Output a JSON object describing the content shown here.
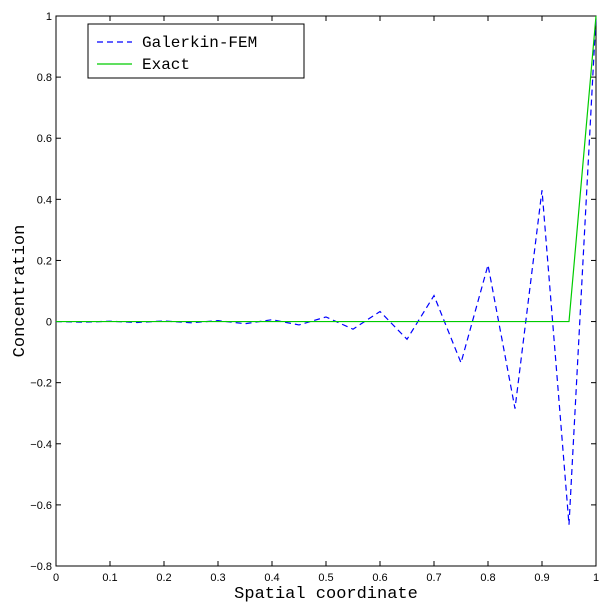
{
  "chart_data": {
    "type": "line",
    "xlabel": "Spatial coordinate",
    "ylabel": "Concentration",
    "xlim": [
      0,
      1
    ],
    "ylim": [
      -0.8,
      1
    ],
    "xticks": [
      0,
      0.1,
      0.2,
      0.3,
      0.4,
      0.5,
      0.6,
      0.7,
      0.8,
      0.9,
      1
    ],
    "yticks": [
      -0.8,
      -0.6,
      -0.4,
      -0.2,
      0,
      0.2,
      0.4,
      0.6,
      0.8,
      1
    ],
    "xtick_labels": [
      "0",
      "0.1",
      "0.2",
      "0.3",
      "0.4",
      "0.5",
      "0.6",
      "0.7",
      "0.8",
      "0.9",
      "1"
    ],
    "ytick_labels": [
      "−0.8",
      "−0.6",
      "−0.4",
      "−0.2",
      "0",
      "0.2",
      "0.4",
      "0.6",
      "0.8",
      "1"
    ],
    "grid": false,
    "legend_position": "top-left",
    "series": [
      {
        "name": "Galerkin-FEM",
        "style": "dashed",
        "color": "#0000ff",
        "x": [
          0,
          0.05,
          0.1,
          0.15,
          0.2,
          0.25,
          0.3,
          0.35,
          0.4,
          0.45,
          0.5,
          0.55,
          0.6,
          0.65,
          0.7,
          0.75,
          0.8,
          0.85,
          0.9,
          0.95,
          1
        ],
        "y": [
          0,
          -0.002,
          0.001,
          -0.003,
          0.002,
          -0.004,
          0.003,
          -0.007,
          0.006,
          -0.011,
          0.015,
          -0.025,
          0.033,
          -0.058,
          0.085,
          -0.135,
          0.185,
          -0.285,
          0.43,
          -0.665,
          1
        ]
      },
      {
        "name": "Exact",
        "style": "solid",
        "color": "#00cc00",
        "x": [
          0,
          0.95,
          1
        ],
        "y": [
          0,
          0,
          1
        ]
      }
    ]
  }
}
